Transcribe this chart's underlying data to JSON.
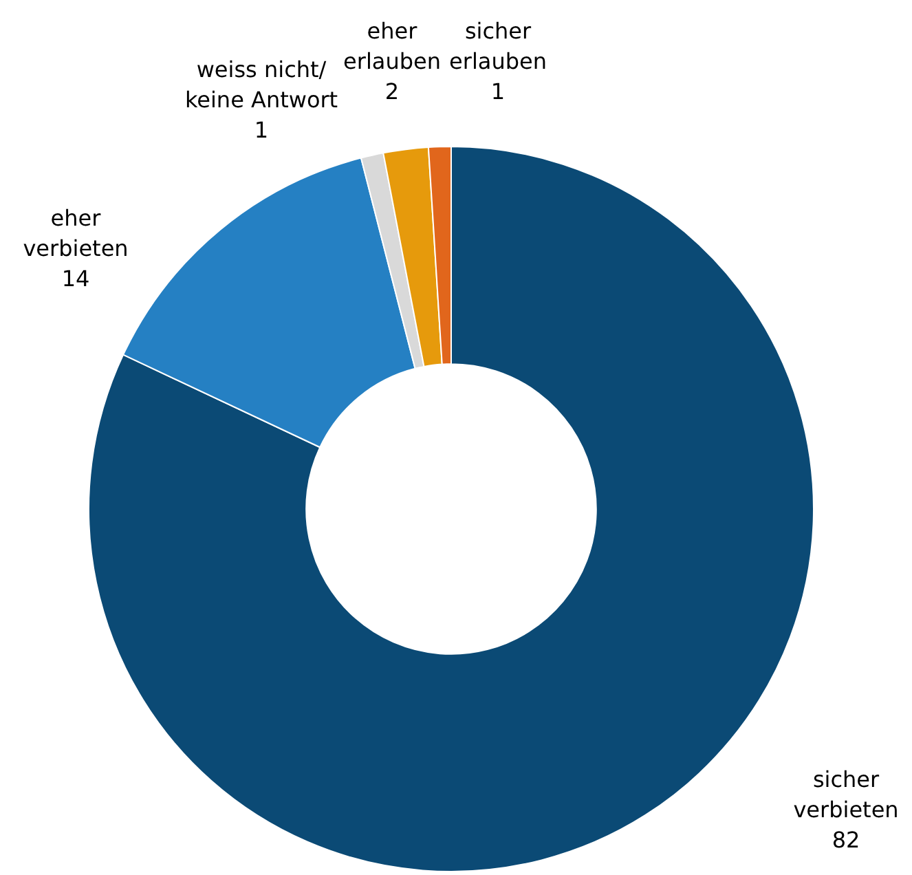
{
  "chart_data": {
    "type": "donut",
    "categories": [
      "sicher\nverbieten",
      "eher\nverbieten",
      "weiss nicht/\nkeine Antwort",
      "eher\nerlauben",
      "sicher\nerlauben"
    ],
    "values": [
      82,
      14,
      1,
      2,
      1
    ],
    "colors": [
      "#0b4a75",
      "#2580c3",
      "#d9d9d9",
      "#e69a0c",
      "#e1661c"
    ],
    "data_labels": true,
    "legend": false
  }
}
